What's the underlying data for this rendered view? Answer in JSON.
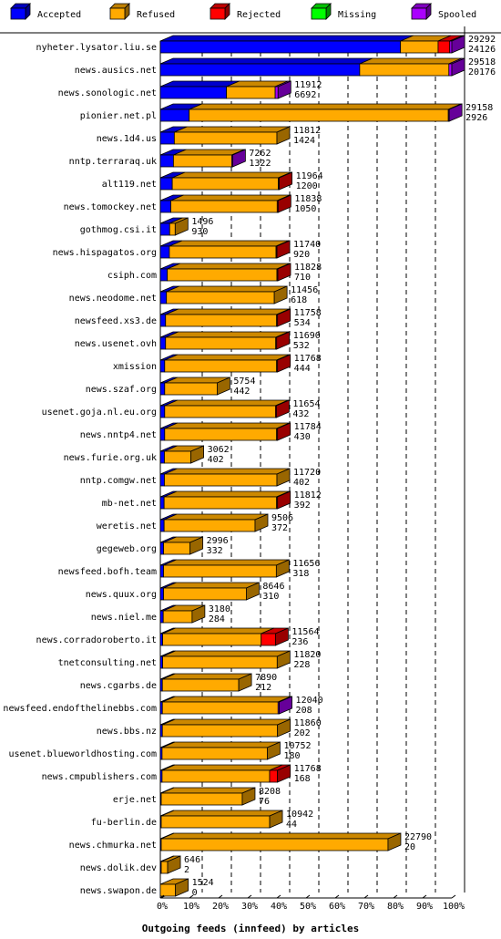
{
  "chart_data": {
    "type": "bar",
    "orientation": "horizontal",
    "stacked": true,
    "title": "Outgoing feeds (innfeed) by articles",
    "legend_placement": "top",
    "legend": [
      {
        "name": "Accepted",
        "color": "#0000ff"
      },
      {
        "name": "Refused",
        "color": "#ffaa00"
      },
      {
        "name": "Rejected",
        "color": "#ff0000"
      },
      {
        "name": "Missing",
        "color": "#00ff00"
      },
      {
        "name": "Spooled",
        "color": "#aa00ff"
      }
    ],
    "x_ticks": [
      "0%",
      "10%",
      "20%",
      "30%",
      "40%",
      "50%",
      "60%",
      "70%",
      "80%",
      "90%",
      "100%"
    ],
    "x_range_percent": [
      0,
      100
    ],
    "grid": "vertical dashed",
    "rows": [
      {
        "name": "nyheter.lysator.liu.se",
        "total": "29292",
        "accepted": "24126",
        "pct": {
          "accepted": 82.4,
          "refused": 12.9,
          "rejected": 4.0,
          "missing": 0,
          "spooled": 0.7
        }
      },
      {
        "name": "news.ausics.net",
        "total": "29518",
        "accepted": "20176",
        "pct": {
          "accepted": 68.4,
          "refused": 30.6,
          "rejected": 0,
          "missing": 0,
          "spooled": 1.0
        }
      },
      {
        "name": "news.sonologic.net",
        "total": "11912",
        "accepted": "6692",
        "pct": {
          "accepted": 22.7,
          "refused": 16.7,
          "rejected": 0,
          "missing": 0,
          "spooled": 1.0
        }
      },
      {
        "name": "pionier.net.pl",
        "total": "29158",
        "accepted": "2926",
        "pct": {
          "accepted": 9.9,
          "refused": 88.9,
          "rejected": 0,
          "missing": 0,
          "spooled": 0.2
        }
      },
      {
        "name": "news.1d4.us",
        "total": "11812",
        "accepted": "1424",
        "pct": {
          "accepted": 4.8,
          "refused": 35.2,
          "rejected": 0,
          "missing": 0,
          "spooled": 0
        }
      },
      {
        "name": "nntp.terraraq.uk",
        "total": "7262",
        "accepted": "1322",
        "pct": {
          "accepted": 4.5,
          "refused": 20.0,
          "rejected": 0,
          "missing": 0,
          "spooled": 0.1
        }
      },
      {
        "name": "alt119.net",
        "total": "11964",
        "accepted": "1200",
        "pct": {
          "accepted": 4.1,
          "refused": 36.4,
          "rejected": 0.1,
          "missing": 0,
          "spooled": 0
        }
      },
      {
        "name": "news.tomockey.net",
        "total": "11838",
        "accepted": "1050",
        "pct": {
          "accepted": 3.6,
          "refused": 36.5,
          "rejected": 0.1,
          "missing": 0,
          "spooled": 0
        }
      },
      {
        "name": "gothmog.csi.it",
        "total": "1496",
        "accepted": "930",
        "pct": {
          "accepted": 3.2,
          "refused": 1.9,
          "rejected": 0,
          "missing": 0,
          "spooled": 0
        }
      },
      {
        "name": "news.hispagatos.org",
        "total": "11740",
        "accepted": "920",
        "pct": {
          "accepted": 3.1,
          "refused": 36.6,
          "rejected": 0.1,
          "missing": 0,
          "spooled": 0
        }
      },
      {
        "name": "csiph.com",
        "total": "11828",
        "accepted": "710",
        "pct": {
          "accepted": 2.4,
          "refused": 37.6,
          "rejected": 0.1,
          "missing": 0,
          "spooled": 0
        }
      },
      {
        "name": "news.neodome.net",
        "total": "11456",
        "accepted": "618",
        "pct": {
          "accepted": 2.1,
          "refused": 37.0,
          "rejected": 0,
          "missing": 0,
          "spooled": 0
        }
      },
      {
        "name": "newsfeed.xs3.de",
        "total": "11758",
        "accepted": "534",
        "pct": {
          "accepted": 1.8,
          "refused": 38.1,
          "rejected": 0.1,
          "missing": 0,
          "spooled": 0
        }
      },
      {
        "name": "news.usenet.ovh",
        "total": "11690",
        "accepted": "532",
        "pct": {
          "accepted": 1.8,
          "refused": 37.8,
          "rejected": 0.1,
          "missing": 0,
          "spooled": 0
        }
      },
      {
        "name": "xmission",
        "total": "11768",
        "accepted": "444",
        "pct": {
          "accepted": 1.5,
          "refused": 38.4,
          "rejected": 0.1,
          "missing": 0,
          "spooled": 0
        }
      },
      {
        "name": "news.szaf.org",
        "total": "5754",
        "accepted": "442",
        "pct": {
          "accepted": 1.5,
          "refused": 18.0,
          "rejected": 0,
          "missing": 0,
          "spooled": 0
        }
      },
      {
        "name": "usenet.goja.nl.eu.org",
        "total": "11654",
        "accepted": "432",
        "pct": {
          "accepted": 1.5,
          "refused": 38.0,
          "rejected": 0.1,
          "missing": 0,
          "spooled": 0
        }
      },
      {
        "name": "news.nntp4.net",
        "total": "11784",
        "accepted": "430",
        "pct": {
          "accepted": 1.5,
          "refused": 38.4,
          "rejected": 0.1,
          "missing": 0,
          "spooled": 0
        }
      },
      {
        "name": "news.furie.org.uk",
        "total": "3062",
        "accepted": "402",
        "pct": {
          "accepted": 1.4,
          "refused": 9.1,
          "rejected": 0,
          "missing": 0,
          "spooled": 0
        }
      },
      {
        "name": "nntp.comgw.net",
        "total": "11720",
        "accepted": "402",
        "pct": {
          "accepted": 1.4,
          "refused": 38.6,
          "rejected": 0,
          "missing": 0,
          "spooled": 0
        }
      },
      {
        "name": "mb-net.net",
        "total": "11812",
        "accepted": "392",
        "pct": {
          "accepted": 1.3,
          "refused": 38.6,
          "rejected": 0.1,
          "missing": 0,
          "spooled": 0
        }
      },
      {
        "name": "weretis.net",
        "total": "9506",
        "accepted": "372",
        "pct": {
          "accepted": 1.3,
          "refused": 31.2,
          "rejected": 0,
          "missing": 0,
          "spooled": 0
        }
      },
      {
        "name": "gegeweb.org",
        "total": "2996",
        "accepted": "332",
        "pct": {
          "accepted": 1.1,
          "refused": 9.1,
          "rejected": 0,
          "missing": 0,
          "spooled": 0
        }
      },
      {
        "name": "newsfeed.bofh.team",
        "total": "11656",
        "accepted": "318",
        "pct": {
          "accepted": 1.1,
          "refused": 38.7,
          "rejected": 0,
          "missing": 0,
          "spooled": 0
        }
      },
      {
        "name": "news.quux.org",
        "total": "8646",
        "accepted": "310",
        "pct": {
          "accepted": 1.1,
          "refused": 28.4,
          "rejected": 0,
          "missing": 0,
          "spooled": 0
        }
      },
      {
        "name": "news.niel.me",
        "total": "3180",
        "accepted": "284",
        "pct": {
          "accepted": 1.0,
          "refused": 9.9,
          "rejected": 0,
          "missing": 0,
          "spooled": 0
        }
      },
      {
        "name": "news.corradoroberto.it",
        "total": "11564",
        "accepted": "236",
        "pct": {
          "accepted": 0.8,
          "refused": 33.8,
          "rejected": 4.9,
          "missing": 0,
          "spooled": 0
        }
      },
      {
        "name": "tnetconsulting.net",
        "total": "11820",
        "accepted": "228",
        "pct": {
          "accepted": 0.8,
          "refused": 39.3,
          "rejected": 0,
          "missing": 0,
          "spooled": 0
        }
      },
      {
        "name": "news.cgarbs.de",
        "total": "7890",
        "accepted": "212",
        "pct": {
          "accepted": 0.7,
          "refused": 26.2,
          "rejected": 0,
          "missing": 0,
          "spooled": 0
        }
      },
      {
        "name": "newsfeed.endofthelinebbs.com",
        "total": "12040",
        "accepted": "208",
        "pct": {
          "accepted": 0.7,
          "refused": 39.7,
          "rejected": 0,
          "missing": 0,
          "spooled": 0.4
        }
      },
      {
        "name": "news.bbs.nz",
        "total": "11860",
        "accepted": "202",
        "pct": {
          "accepted": 0.7,
          "refused": 39.5,
          "rejected": 0,
          "missing": 0,
          "spooled": 0
        }
      },
      {
        "name": "usenet.blueworldhosting.com",
        "total": "10752",
        "accepted": "180",
        "pct": {
          "accepted": 0.6,
          "refused": 36.1,
          "rejected": 0,
          "missing": 0,
          "spooled": 0
        }
      },
      {
        "name": "news.cmpublishers.com",
        "total": "11768",
        "accepted": "168",
        "pct": {
          "accepted": 0.6,
          "refused": 36.9,
          "rejected": 2.7,
          "missing": 0,
          "spooled": 0
        }
      },
      {
        "name": "erje.net",
        "total": "8208",
        "accepted": "76",
        "pct": {
          "accepted": 0.3,
          "refused": 27.8,
          "rejected": 0,
          "missing": 0,
          "spooled": 0
        }
      },
      {
        "name": "fu-berlin.de",
        "total": "10942",
        "accepted": "44",
        "pct": {
          "accepted": 0.2,
          "refused": 37.2,
          "rejected": 0,
          "missing": 0,
          "spooled": 0
        }
      },
      {
        "name": "news.chmurka.net",
        "total": "22790",
        "accepted": "20",
        "pct": {
          "accepted": 0.1,
          "refused": 77.8,
          "rejected": 0,
          "missing": 0,
          "spooled": 0
        }
      },
      {
        "name": "news.dolik.dev",
        "total": "646",
        "accepted": "2",
        "pct": {
          "accepted": 0.01,
          "refused": 2.2,
          "rejected": 0,
          "missing": 0,
          "spooled": 0
        }
      },
      {
        "name": "news.swapon.de",
        "total": "1524",
        "accepted": "0",
        "pct": {
          "accepted": 0,
          "refused": 5.2,
          "rejected": 0,
          "missing": 0,
          "spooled": 0
        }
      }
    ]
  }
}
